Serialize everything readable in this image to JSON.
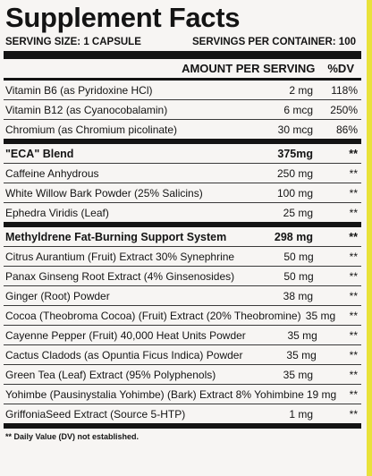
{
  "title": "Supplement Facts",
  "serving_size": "SERVING SIZE: 1 CAPSULE",
  "servings_per_container": "SERVINGS PER CONTAINER: 100",
  "header": {
    "amount": "AMOUNT PER SERVING",
    "dv": "%DV"
  },
  "rows": [
    {
      "name": "Vitamin B6 (as Pyridoxine HCl)",
      "amount": "2 mg",
      "dv": "118%"
    },
    {
      "name": "Vitamin B12 (as Cyanocobalamin)",
      "amount": "6 mcg",
      "dv": "250%"
    },
    {
      "name": "Chromium (as Chromium picolinate)",
      "amount": "30 mcg",
      "dv": "86%"
    },
    {
      "name": "\"ECA\" Blend",
      "amount": "375mg",
      "dv": "**"
    },
    {
      "name": "Caffeine Anhydrous",
      "amount": "250 mg",
      "dv": "**"
    },
    {
      "name": "White Willow Bark Powder (25% Salicins)",
      "amount": "100 mg",
      "dv": "**"
    },
    {
      "name": "Ephedra Viridis (Leaf)",
      "amount": "25 mg",
      "dv": "**"
    },
    {
      "name": "Methyldrene Fat-Burning Support System",
      "amount": "298 mg",
      "dv": "**"
    },
    {
      "name": "Citrus Aurantium (Fruit) Extract 30% Synephrine",
      "amount": "50 mg",
      "dv": "**"
    },
    {
      "name": "Panax Ginseng Root Extract (4% Ginsenosides)",
      "amount": "50 mg",
      "dv": "**"
    },
    {
      "name": "Ginger (Root) Powder",
      "amount": "38 mg",
      "dv": "**"
    },
    {
      "name": "Cocoa (Theobroma Cocoa) (Fruit) Extract (20% Theobromine)",
      "amount": "35 mg",
      "dv": "**"
    },
    {
      "name": "Cayenne Pepper (Fruit) 40,000 Heat Units Powder",
      "amount": "35 mg",
      "dv": "**"
    },
    {
      "name": "Cactus Cladods (as Opuntia Ficus Indica) Powder",
      "amount": "35 mg",
      "dv": "**"
    },
    {
      "name": "Green Tea (Leaf) Extract (95% Polyphenols)",
      "amount": "35 mg",
      "dv": "**"
    },
    {
      "name": "Yohimbe (Pausinystalia Yohimbe) (Bark) Extract 8% Yohimbine",
      "amount": "19 mg",
      "dv": "**"
    },
    {
      "name": "GriffoniaSeed Extract (Source 5-HTP)",
      "amount": "1 mg",
      "dv": "**"
    }
  ],
  "footnote": "** Daily Value (DV) not established."
}
